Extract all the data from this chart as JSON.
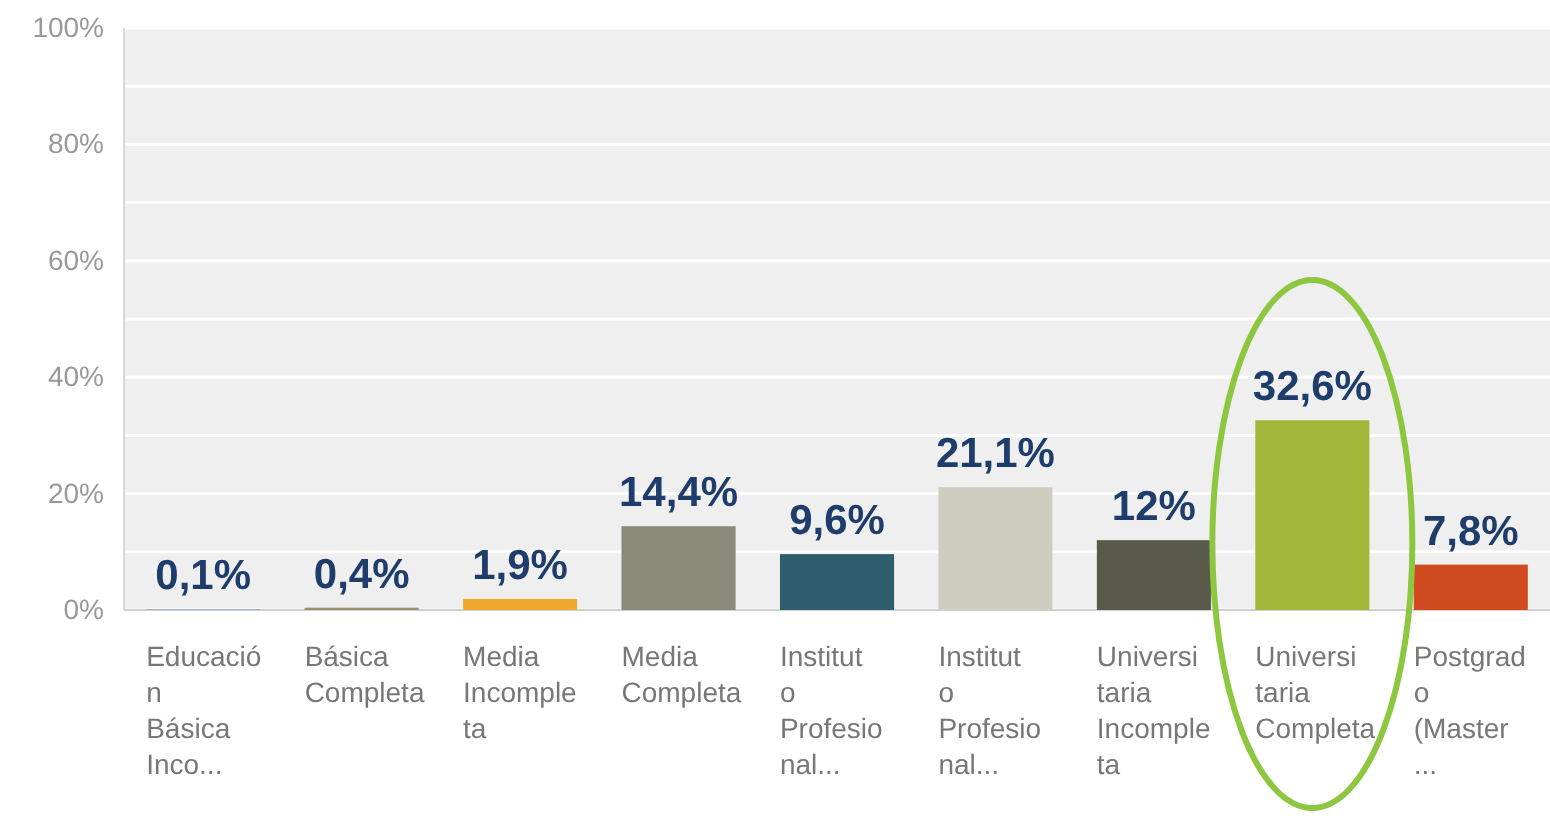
{
  "chart_data": {
    "type": "bar",
    "categories": [
      "Educación Básica Inco...",
      "Básica Completa",
      "Media Incompleta",
      "Media Completa",
      "Instituto Profesional...",
      "Instituto Profesional...",
      "Universitaria Incompleta",
      "Universitaria Completa",
      "Postgrado (Master ..."
    ],
    "values": [
      0.1,
      0.4,
      1.9,
      14.4,
      9.6,
      21.1,
      12,
      32.6,
      7.8
    ],
    "colors": [
      "#7f9fb8",
      "#9c8e6e",
      "#f0a830",
      "#8a8a78",
      "#2e5e6e",
      "#cfcdbf",
      "#5a5a4a",
      "#a3b83a",
      "#d04a20"
    ],
    "value_labels": [
      "0,1%",
      "0,4%",
      "1,9%",
      "14,4%",
      "9,6%",
      "21,1%",
      "12%",
      "32,6%",
      "7,8%"
    ],
    "ylim": [
      0,
      100
    ],
    "yticks": [
      {
        "value": 0,
        "label": "0%"
      },
      {
        "value": 10,
        "label": null
      },
      {
        "value": 20,
        "label": "20%"
      },
      {
        "value": 30,
        "label": null
      },
      {
        "value": 40,
        "label": "40%"
      },
      {
        "value": 50,
        "label": null
      },
      {
        "value": 60,
        "label": "60%"
      },
      {
        "value": 70,
        "label": null
      },
      {
        "value": 80,
        "label": "80%"
      },
      {
        "value": 90,
        "label": null
      },
      {
        "value": 100,
        "label": "100%"
      }
    ],
    "grid": "y"
  }
}
